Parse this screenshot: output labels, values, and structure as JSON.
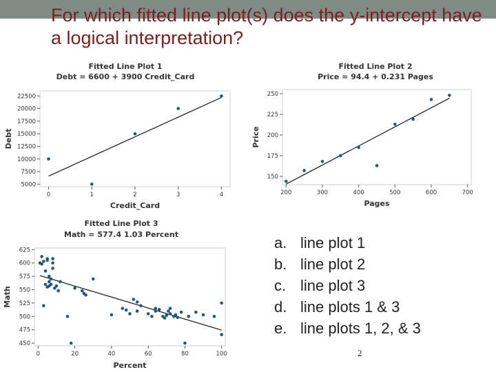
{
  "slide": {
    "title": "For which fitted line plot(s) does the y-intercept have a logical interpretation?",
    "page_number": "2",
    "answers": [
      {
        "letter": "a.",
        "text": "line plot 1"
      },
      {
        "letter": "b.",
        "text": "line plot 2"
      },
      {
        "letter": "c.",
        "text": "line plot 3"
      },
      {
        "letter": "d.",
        "text": "line plots 1 & 3"
      },
      {
        "letter": "e.",
        "text": "line plots 1, 2, & 3"
      }
    ]
  },
  "colors": {
    "point": "#1f5a7a",
    "line": "#111111",
    "title": "#7a1f1f",
    "topbar": "#7f8c86"
  },
  "chart_data": [
    {
      "type": "scatter",
      "title": "Fitted Line Plot 1",
      "subtitle": "Debt = 6600 + 3900 Credit_Card",
      "xlabel": "Credit_Card",
      "ylabel": "Debt",
      "xlim": [
        -0.2,
        4.2
      ],
      "ylim": [
        4500,
        23500
      ],
      "xticks": [
        0,
        1,
        2,
        3,
        4
      ],
      "yticks": [
        5000,
        7500,
        10000,
        12500,
        15000,
        17500,
        20000,
        22500
      ],
      "ytick_labels": [
        "5000",
        "7500",
        "10000",
        "12500",
        "15000",
        "17500",
        "20000",
        "22500"
      ],
      "points": [
        [
          0,
          10000
        ],
        [
          1,
          5000
        ],
        [
          2,
          15000
        ],
        [
          3,
          20000
        ],
        [
          4,
          22500
        ]
      ],
      "fit": {
        "intercept": 6600,
        "slope": 3900
      }
    },
    {
      "type": "scatter",
      "title": "Fitted Line Plot 2",
      "subtitle": "Price = 94.4 + 0.231 Pages",
      "xlabel": "Pages",
      "ylabel": "Price",
      "xlim": [
        190,
        710
      ],
      "ylim": [
        140,
        255
      ],
      "xticks": [
        200,
        300,
        400,
        500,
        600,
        700
      ],
      "yticks": [
        150,
        175,
        200,
        225,
        250
      ],
      "ytick_labels": [
        "150",
        "175",
        "200",
        "225",
        "250"
      ],
      "points": [
        [
          200,
          144
        ],
        [
          250,
          157
        ],
        [
          300,
          168
        ],
        [
          350,
          175
        ],
        [
          400,
          185
        ],
        [
          450,
          163
        ],
        [
          500,
          213
        ],
        [
          550,
          219
        ],
        [
          600,
          243
        ],
        [
          650,
          248
        ]
      ],
      "fit": {
        "intercept": 94.4,
        "slope": 0.231
      }
    },
    {
      "type": "scatter",
      "title": "Fitted Line Plot 3",
      "subtitle": "Math = 577.4   1.03 Percent",
      "xlabel": "Percent",
      "ylabel": "Math",
      "xlim": [
        -2,
        102
      ],
      "ylim": [
        445,
        628
      ],
      "xticks": [
        0,
        20,
        40,
        60,
        80,
        100
      ],
      "yticks": [
        450,
        475,
        500,
        525,
        550,
        575,
        600,
        625
      ],
      "ytick_labels": [
        "450",
        "475",
        "500",
        "525",
        "550",
        "575",
        "600",
        "625"
      ],
      "points": [
        [
          1,
          600
        ],
        [
          2,
          612
        ],
        [
          2,
          598
        ],
        [
          3,
          603
        ],
        [
          3,
          520
        ],
        [
          4,
          585
        ],
        [
          4,
          560
        ],
        [
          5,
          608
        ],
        [
          5,
          555
        ],
        [
          5,
          605
        ],
        [
          6,
          575
        ],
        [
          6,
          565
        ],
        [
          6,
          557
        ],
        [
          7,
          570
        ],
        [
          7,
          560
        ],
        [
          8,
          600
        ],
        [
          8,
          608
        ],
        [
          8,
          590
        ],
        [
          9,
          553
        ],
        [
          10,
          557
        ],
        [
          11,
          548
        ],
        [
          12,
          565
        ],
        [
          16,
          500
        ],
        [
          18,
          450
        ],
        [
          20,
          553
        ],
        [
          24,
          548
        ],
        [
          25,
          543
        ],
        [
          26,
          540
        ],
        [
          30,
          570
        ],
        [
          40,
          503
        ],
        [
          46,
          515
        ],
        [
          48,
          512
        ],
        [
          50,
          505
        ],
        [
          52,
          532
        ],
        [
          54,
          510
        ],
        [
          54,
          527
        ],
        [
          56,
          520
        ],
        [
          60,
          505
        ],
        [
          62,
          500
        ],
        [
          64,
          510
        ],
        [
          64,
          515
        ],
        [
          66,
          513
        ],
        [
          68,
          500
        ],
        [
          69,
          497
        ],
        [
          70,
          502
        ],
        [
          71,
          510
        ],
        [
          72,
          505
        ],
        [
          72,
          515
        ],
        [
          74,
          500
        ],
        [
          75,
          503
        ],
        [
          76,
          498
        ],
        [
          78,
          508
        ],
        [
          80,
          450
        ],
        [
          82,
          500
        ],
        [
          86,
          508
        ],
        [
          90,
          503
        ],
        [
          96,
          500
        ],
        [
          100,
          525
        ],
        [
          100,
          466
        ]
      ],
      "fit": {
        "intercept": 577.4,
        "slope": -1.03
      }
    }
  ]
}
